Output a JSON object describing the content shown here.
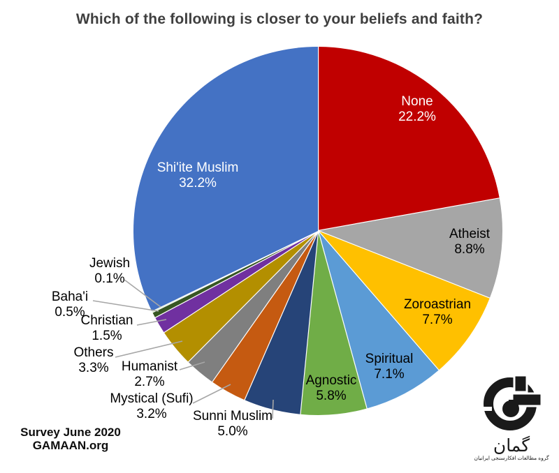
{
  "background": "#ffffff",
  "chart_data": {
    "type": "pie",
    "title": "Which of the following is closer to your beliefs and faith?",
    "legend": "none",
    "start_angle_deg": 0,
    "direction": "clockwise",
    "units": "%",
    "slices": [
      {
        "label": "None",
        "value": 22.2,
        "color": "#C00000",
        "label_placement": "inside",
        "label_color": "#FFFFFF"
      },
      {
        "label": "Atheist",
        "value": 8.8,
        "color": "#A6A6A6",
        "label_placement": "inside",
        "label_color": "#000000"
      },
      {
        "label": "Zoroastrian",
        "value": 7.7,
        "color": "#FFC000",
        "label_placement": "inside",
        "label_color": "#000000"
      },
      {
        "label": "Spiritual",
        "value": 7.1,
        "color": "#5B9BD5",
        "label_placement": "inside",
        "label_color": "#000000"
      },
      {
        "label": "Agnostic",
        "value": 5.8,
        "color": "#70AD47",
        "label_placement": "inside",
        "label_color": "#000000"
      },
      {
        "label": "Sunni Muslim",
        "value": 5.0,
        "color": "#264478",
        "label_placement": "outside",
        "label_color": "#000000"
      },
      {
        "label": "Mystical (Sufi)",
        "value": 3.2,
        "color": "#C55A11",
        "label_placement": "outside",
        "label_color": "#000000"
      },
      {
        "label": "Humanist",
        "value": 2.7,
        "color": "#7F7F7F",
        "label_placement": "outside",
        "label_color": "#000000"
      },
      {
        "label": "Others",
        "value": 3.3,
        "color": "#B38F00",
        "label_placement": "outside",
        "label_color": "#000000"
      },
      {
        "label": "Christian",
        "value": 1.5,
        "color": "#7030A0",
        "label_placement": "outside",
        "label_color": "#000000"
      },
      {
        "label": "Baha'i",
        "value": 0.5,
        "color": "#375623",
        "label_placement": "outside",
        "label_color": "#000000"
      },
      {
        "label": "Jewish",
        "value": 0.1,
        "color": "#A9D18E",
        "label_placement": "outside",
        "label_color": "#000000"
      },
      {
        "label": "Shi'ite Muslim",
        "value": 32.2,
        "color": "#4472C4",
        "label_placement": "inside",
        "label_color": "#FFFFFF"
      }
    ],
    "leader_line_color": "#A6A6A6"
  },
  "footer": {
    "survey_line": "Survey June 2020",
    "org_line": "GAMAAN.org"
  },
  "logo": {
    "wordmark": "گمان",
    "tagline": "گروه مطالعات افکارسنجی ایرانیان",
    "mark_color": "#1a1a1a"
  }
}
